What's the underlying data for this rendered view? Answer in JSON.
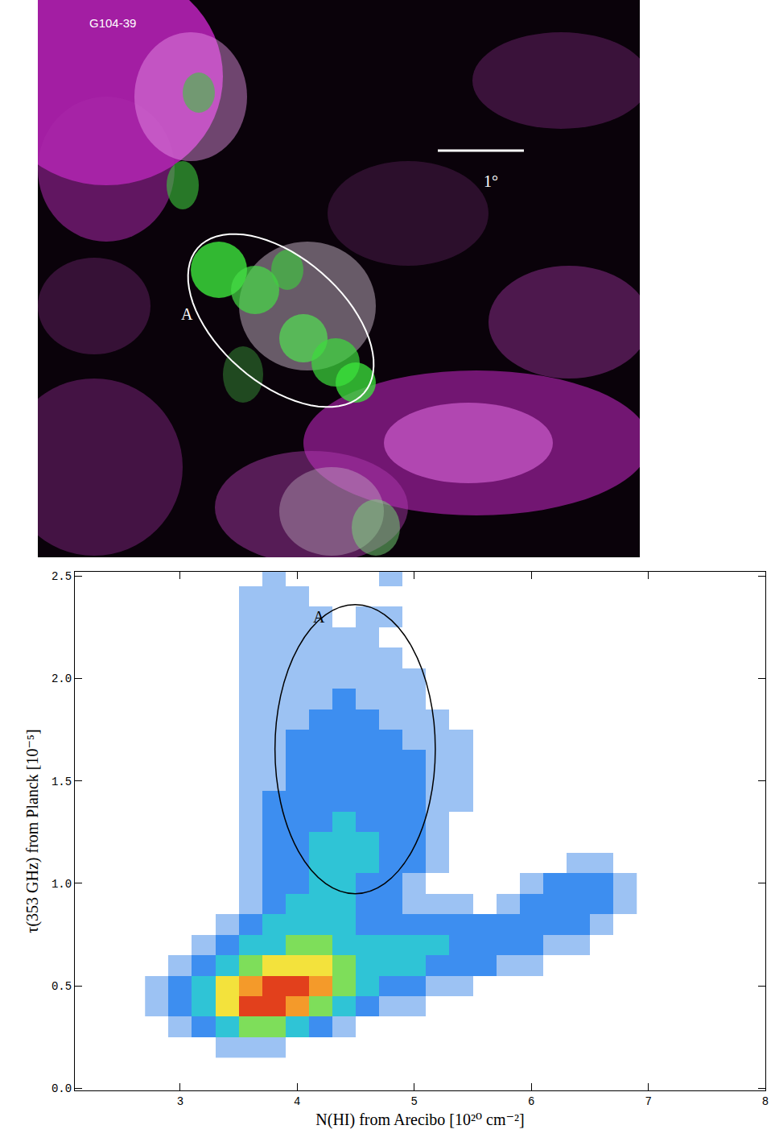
{
  "chart_data": [
    {
      "type": "image",
      "title": "G104-39",
      "annotations": [
        {
          "text": "A"
        },
        {
          "text": "1°"
        }
      ]
    },
    {
      "type": "heatmap",
      "x_label": "N(HI) from Arecibo [10²⁰ cm⁻²]",
      "y_label": "τ(353 GHz) from Planck [10⁻⁵]",
      "xlim": [
        2.1,
        8
      ],
      "xticks": [
        3,
        4,
        5,
        6,
        7,
        8
      ],
      "ylim": [
        -0.01,
        2.52
      ],
      "yticks": [
        {
          "value": 0,
          "label": "0.0"
        },
        {
          "value": 0.5,
          "label": "0.5"
        },
        {
          "value": 1,
          "label": "1.0"
        },
        {
          "value": 1.5,
          "label": "1.5"
        },
        {
          "value": 2,
          "label": "2.0"
        },
        {
          "value": 2.5,
          "label": "2.5"
        }
      ],
      "grid": false,
      "annotations": [
        {
          "text": "A",
          "x": 4.19,
          "y": 2.3
        }
      ],
      "regions": [
        {
          "x": [
            3.81,
            5.18
          ],
          "y": [
            0.95,
            2.36
          ]
        }
      ],
      "x": [
        2.8,
        3.0,
        3.2,
        3.4,
        3.6,
        3.8,
        4.0,
        4.2,
        4.4,
        4.6,
        4.8,
        5.0,
        5.2,
        5.4,
        5.6,
        5.8,
        6.0,
        6.2,
        6.4,
        6.6,
        6.8
      ],
      "y": [
        0.2,
        0.3,
        0.4,
        0.5,
        0.6,
        0.7,
        0.8,
        0.9,
        1.0,
        1.1,
        1.2,
        1.3,
        1.4,
        1.5,
        1.6,
        1.7,
        1.8,
        1.9,
        2.0,
        2.1,
        2.2,
        2.3,
        2.4,
        2.5
      ],
      "values": [
        [
          null,
          null,
          null,
          1,
          1,
          1,
          null,
          null,
          null,
          null,
          null,
          null,
          null,
          null,
          null,
          null,
          null,
          null,
          null,
          null,
          null
        ],
        [
          null,
          1,
          2,
          3,
          4,
          4,
          3,
          2,
          1,
          null,
          null,
          null,
          null,
          null,
          null,
          null,
          null,
          null,
          null,
          null,
          null
        ],
        [
          1,
          2,
          3,
          5,
          7,
          7,
          6,
          4,
          3,
          2,
          1,
          1,
          null,
          null,
          null,
          null,
          null,
          null,
          null,
          null,
          null
        ],
        [
          1,
          2,
          3,
          5,
          6,
          7,
          7,
          6,
          4,
          3,
          2,
          2,
          1,
          1,
          null,
          null,
          null,
          null,
          null,
          null,
          null
        ],
        [
          null,
          1,
          2,
          3,
          4,
          5,
          5,
          5,
          4,
          3,
          3,
          3,
          2,
          2,
          2,
          1,
          1,
          null,
          null,
          null,
          null
        ],
        [
          null,
          null,
          1,
          2,
          3,
          3,
          4,
          4,
          3,
          3,
          3,
          3,
          3,
          2,
          2,
          2,
          2,
          1,
          1,
          null,
          null
        ],
        [
          null,
          null,
          null,
          1,
          2,
          3,
          3,
          3,
          3,
          2,
          2,
          2,
          2,
          2,
          2,
          2,
          2,
          2,
          2,
          1,
          null
        ],
        [
          null,
          null,
          null,
          null,
          1,
          2,
          3,
          3,
          3,
          2,
          2,
          1,
          1,
          1,
          null,
          1,
          2,
          2,
          2,
          2,
          1
        ],
        [
          null,
          null,
          null,
          null,
          1,
          2,
          2,
          3,
          3,
          2,
          2,
          1,
          null,
          null,
          null,
          null,
          1,
          2,
          2,
          2,
          1
        ],
        [
          null,
          null,
          null,
          null,
          1,
          2,
          2,
          3,
          3,
          3,
          2,
          2,
          1,
          null,
          null,
          null,
          null,
          null,
          1,
          1,
          null
        ],
        [
          null,
          null,
          null,
          null,
          1,
          2,
          2,
          3,
          3,
          3,
          2,
          2,
          1,
          null,
          null,
          null,
          null,
          null,
          null,
          null,
          null
        ],
        [
          null,
          null,
          null,
          null,
          1,
          2,
          2,
          2,
          3,
          2,
          2,
          2,
          1,
          null,
          null,
          null,
          null,
          null,
          null,
          null,
          null
        ],
        [
          null,
          null,
          null,
          null,
          1,
          2,
          2,
          2,
          2,
          2,
          2,
          2,
          1,
          1,
          null,
          null,
          null,
          null,
          null,
          null,
          null
        ],
        [
          null,
          null,
          null,
          null,
          1,
          1,
          2,
          2,
          2,
          2,
          2,
          2,
          1,
          1,
          null,
          null,
          null,
          null,
          null,
          null,
          null
        ],
        [
          null,
          null,
          null,
          null,
          1,
          1,
          2,
          2,
          2,
          2,
          2,
          2,
          1,
          1,
          null,
          null,
          null,
          null,
          null,
          null,
          null
        ],
        [
          null,
          null,
          null,
          null,
          1,
          1,
          2,
          2,
          2,
          2,
          2,
          1,
          1,
          1,
          null,
          null,
          null,
          null,
          null,
          null,
          null
        ],
        [
          null,
          null,
          null,
          null,
          1,
          1,
          1,
          2,
          2,
          2,
          1,
          1,
          1,
          null,
          null,
          null,
          null,
          null,
          null,
          null,
          null
        ],
        [
          null,
          null,
          null,
          null,
          1,
          1,
          1,
          1,
          2,
          1,
          1,
          1,
          null,
          null,
          null,
          null,
          null,
          null,
          null,
          null,
          null
        ],
        [
          null,
          null,
          null,
          null,
          1,
          1,
          1,
          1,
          1,
          1,
          1,
          1,
          null,
          null,
          null,
          null,
          null,
          null,
          null,
          null,
          null
        ],
        [
          null,
          null,
          null,
          null,
          1,
          1,
          1,
          1,
          1,
          1,
          1,
          null,
          null,
          null,
          null,
          null,
          null,
          null,
          null,
          null,
          null
        ],
        [
          null,
          null,
          null,
          null,
          1,
          1,
          1,
          1,
          1,
          1,
          null,
          null,
          null,
          null,
          null,
          null,
          null,
          null,
          null,
          null,
          null
        ],
        [
          null,
          null,
          null,
          null,
          1,
          1,
          1,
          1,
          null,
          1,
          1,
          null,
          null,
          null,
          null,
          null,
          null,
          null,
          null,
          null,
          null
        ],
        [
          null,
          null,
          null,
          null,
          1,
          1,
          1,
          null,
          null,
          null,
          null,
          null,
          null,
          null,
          null,
          null,
          null,
          null,
          null,
          null,
          null
        ],
        [
          null,
          null,
          null,
          null,
          null,
          1,
          null,
          null,
          null,
          null,
          1,
          null,
          null,
          null,
          null,
          null,
          null,
          null,
          null,
          null,
          null
        ]
      ]
    }
  ]
}
